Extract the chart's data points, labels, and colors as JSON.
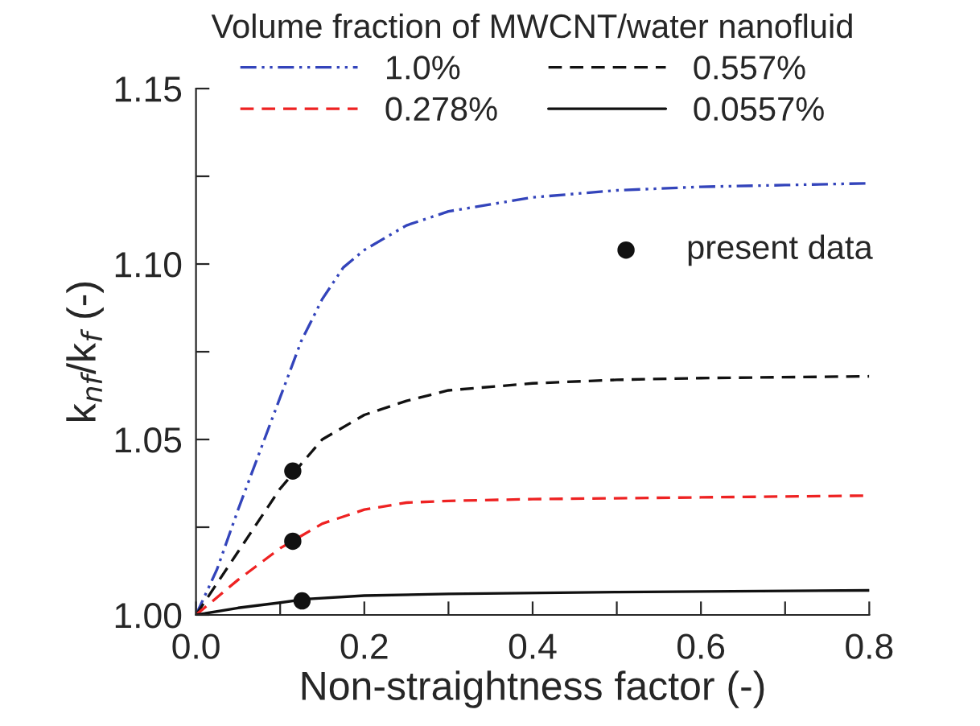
{
  "chart_data": {
    "type": "line",
    "xlabel": "Non-straightness factor (-)",
    "ylabel": "k$_{nf}$/k$_{f}$ (-)",
    "legend_title": "Volume fraction of MWCNT/water nanofluid",
    "legend": "top",
    "xlim": [
      0,
      0.8
    ],
    "ylim": [
      1.0,
      1.15
    ],
    "xticks": [
      {
        "value": 0,
        "label": "0.0"
      },
      {
        "value": 0.1,
        "label": null
      },
      {
        "value": 0.2,
        "label": "0.2"
      },
      {
        "value": 0.3,
        "label": null
      },
      {
        "value": 0.4,
        "label": "0.4"
      },
      {
        "value": 0.5,
        "label": null
      },
      {
        "value": 0.6,
        "label": "0.6"
      },
      {
        "value": 0.7,
        "label": null
      },
      {
        "value": 0.8,
        "label": "0.8"
      }
    ],
    "yticks": [
      {
        "value": 1.0,
        "label": "1.00"
      },
      {
        "value": 1.025,
        "label": null
      },
      {
        "value": 1.05,
        "label": "1.05"
      },
      {
        "value": 1.075,
        "label": null
      },
      {
        "value": 1.1,
        "label": "1.10"
      },
      {
        "value": 1.125,
        "label": null
      },
      {
        "value": 1.15,
        "label": "1.15"
      }
    ],
    "grid": false,
    "series": [
      {
        "name": "1.0%",
        "color": "#3344bb",
        "line_style": "dashdotdot",
        "x": [
          0,
          0.025,
          0.05,
          0.075,
          0.1,
          0.125,
          0.15,
          0.175,
          0.2,
          0.25,
          0.3,
          0.35,
          0.4,
          0.5,
          0.6,
          0.7,
          0.8
        ],
        "values": [
          1.0,
          1.013,
          1.03,
          1.046,
          1.062,
          1.078,
          1.09,
          1.099,
          1.104,
          1.111,
          1.115,
          1.117,
          1.119,
          1.121,
          1.122,
          1.1225,
          1.123
        ]
      },
      {
        "name": "0.557%",
        "color": "#111111",
        "line_style": "dashed",
        "x": [
          0,
          0.05,
          0.1,
          0.15,
          0.2,
          0.25,
          0.3,
          0.4,
          0.5,
          0.6,
          0.8
        ],
        "values": [
          1.0,
          1.018,
          1.036,
          1.05,
          1.057,
          1.061,
          1.064,
          1.066,
          1.067,
          1.0675,
          1.068
        ]
      },
      {
        "name": "0.278%",
        "color": "#ee2222",
        "line_style": "dashed",
        "x": [
          0,
          0.05,
          0.1,
          0.15,
          0.2,
          0.25,
          0.3,
          0.4,
          0.6,
          0.8
        ],
        "values": [
          1.0,
          1.01,
          1.019,
          1.026,
          1.03,
          1.032,
          1.0325,
          1.033,
          1.0335,
          1.034
        ]
      },
      {
        "name": "0.0557%",
        "color": "#111111",
        "line_style": "solid",
        "x": [
          0,
          0.05,
          0.1,
          0.13,
          0.2,
          0.3,
          0.5,
          0.8
        ],
        "values": [
          1.0,
          1.002,
          1.0035,
          1.0045,
          1.0055,
          1.006,
          1.0065,
          1.007
        ]
      },
      {
        "name": "present data",
        "type": "scatter",
        "marker": "circle",
        "color": "#111111",
        "x": [
          0.115,
          0.115,
          0.126
        ],
        "values": [
          1.041,
          1.021,
          1.004
        ]
      }
    ]
  }
}
